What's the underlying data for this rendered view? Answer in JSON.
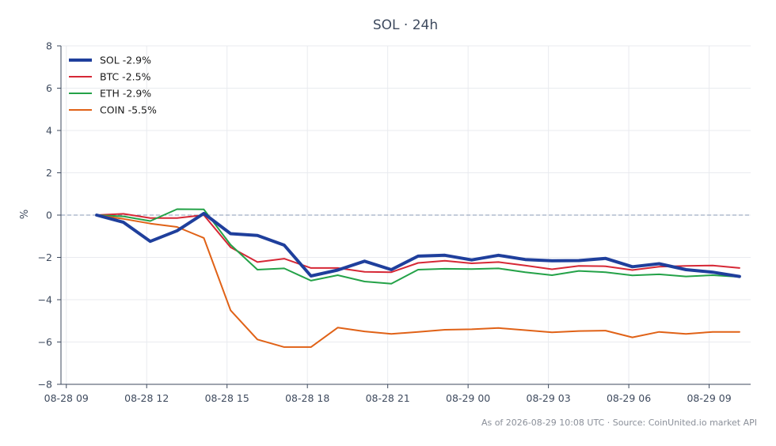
{
  "chart_data": {
    "type": "line",
    "title": "SOL · 24h",
    "ylabel": "%",
    "xlabel": "",
    "ylim": [
      -8,
      8
    ],
    "yticks": [
      -8,
      -6,
      -4,
      -2,
      0,
      2,
      4,
      6,
      8
    ],
    "xlim": [
      "2026-08-28T08:48",
      "2026-08-29T10:33"
    ],
    "xticks": [
      {
        "at": "2026-08-28T09:00",
        "label": "08-28 09"
      },
      {
        "at": "2026-08-28T12:00",
        "label": "08-28 12"
      },
      {
        "at": "2026-08-28T15:00",
        "label": "08-28 15"
      },
      {
        "at": "2026-08-28T18:00",
        "label": "08-28 18"
      },
      {
        "at": "2026-08-28T21:00",
        "label": "08-28 21"
      },
      {
        "at": "2026-08-29T00:00",
        "label": "08-29 00"
      },
      {
        "at": "2026-08-29T03:00",
        "label": "08-29 03"
      },
      {
        "at": "2026-08-29T06:00",
        "label": "08-29 06"
      },
      {
        "at": "2026-08-29T09:00",
        "label": "08-29 09"
      }
    ],
    "grid": true,
    "zero_line": true,
    "legend_position": "top-left",
    "x": [
      "2026-08-28T10:08",
      "2026-08-28T11:08",
      "2026-08-28T12:08",
      "2026-08-28T13:08",
      "2026-08-28T14:08",
      "2026-08-28T15:08",
      "2026-08-28T16:08",
      "2026-08-28T17:08",
      "2026-08-28T18:08",
      "2026-08-28T19:08",
      "2026-08-28T20:08",
      "2026-08-28T21:08",
      "2026-08-28T22:08",
      "2026-08-28T23:08",
      "2026-08-29T00:08",
      "2026-08-29T01:08",
      "2026-08-29T02:08",
      "2026-08-29T03:08",
      "2026-08-29T04:08",
      "2026-08-29T05:08",
      "2026-08-29T06:08",
      "2026-08-29T07:08",
      "2026-08-29T08:08",
      "2026-08-29T09:08",
      "2026-08-29T10:08"
    ],
    "series": [
      {
        "name": "SOL -2.9%",
        "color": "#1f3f9c",
        "values": [
          0,
          -0.34,
          -1.24,
          -0.74,
          0.08,
          -0.88,
          -0.96,
          -1.42,
          -2.88,
          -2.6,
          -2.18,
          -2.58,
          -1.94,
          -1.9,
          -2.12,
          -1.9,
          -2.1,
          -2.16,
          -2.15,
          -2.05,
          -2.44,
          -2.3,
          -2.58,
          -2.7,
          -2.9
        ]
      },
      {
        "name": "BTC -2.5%",
        "color": "#d62836",
        "values": [
          0,
          0.06,
          -0.14,
          -0.14,
          0,
          -1.52,
          -2.22,
          -2.06,
          -2.5,
          -2.5,
          -2.68,
          -2.7,
          -2.26,
          -2.16,
          -2.28,
          -2.22,
          -2.38,
          -2.56,
          -2.4,
          -2.42,
          -2.6,
          -2.44,
          -2.4,
          -2.38,
          -2.5
        ]
      },
      {
        "name": "ETH -2.9%",
        "color": "#24a248",
        "values": [
          0,
          -0.06,
          -0.28,
          0.28,
          0.27,
          -1.4,
          -2.58,
          -2.52,
          -3.1,
          -2.84,
          -3.14,
          -3.24,
          -2.58,
          -2.54,
          -2.55,
          -2.52,
          -2.7,
          -2.84,
          -2.64,
          -2.7,
          -2.85,
          -2.8,
          -2.9,
          -2.84,
          -2.92
        ]
      },
      {
        "name": "COIN -5.5%",
        "color": "#e06217",
        "values": [
          0,
          -0.18,
          -0.4,
          -0.56,
          -1.08,
          -4.5,
          -5.88,
          -6.24,
          -6.24,
          -5.32,
          -5.5,
          -5.62,
          -5.52,
          -5.42,
          -5.4,
          -5.34,
          -5.44,
          -5.54,
          -5.48,
          -5.46,
          -5.78,
          -5.52,
          -5.62,
          -5.52,
          -5.52
        ]
      }
    ],
    "footer": "As of 2026-08-29 10:08 UTC · Source: CoinUnited.io market API"
  }
}
